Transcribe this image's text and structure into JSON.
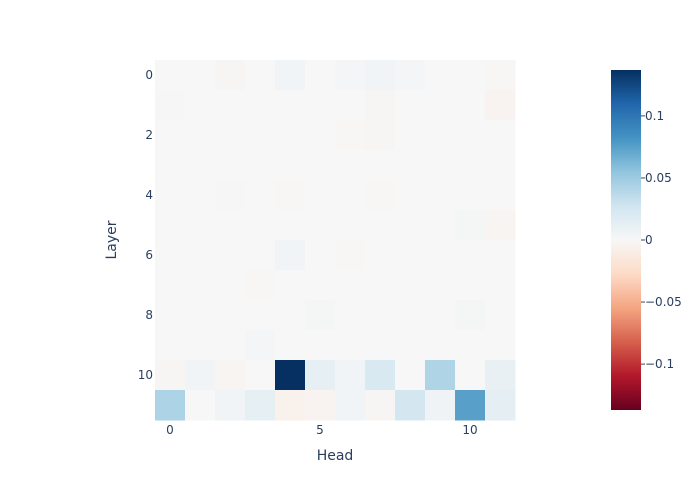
{
  "chart_data": {
    "type": "heatmap",
    "xlabel": "Head",
    "ylabel": "Layer",
    "x": [
      0,
      1,
      2,
      3,
      4,
      5,
      6,
      7,
      8,
      9,
      10,
      11
    ],
    "y": [
      0,
      1,
      2,
      3,
      4,
      5,
      6,
      7,
      8,
      9,
      10,
      11
    ],
    "x_ticks": [
      0,
      5,
      10
    ],
    "y_ticks": [
      0,
      2,
      4,
      6,
      8,
      10
    ],
    "y_reversed": true,
    "colorscale": "RdBu",
    "zlim": [
      -0.137,
      0.137
    ],
    "colorbar_ticks": [
      {
        "value": 0.1,
        "label": "0.1"
      },
      {
        "value": 0.05,
        "label": "0.05"
      },
      {
        "value": 0,
        "label": "0"
      },
      {
        "value": -0.05,
        "label": "−0.05"
      },
      {
        "value": -0.1,
        "label": "−0.1"
      }
    ],
    "z": [
      [
        0.0,
        0.0,
        -0.002,
        0.0,
        0.004,
        0.0,
        0.003,
        0.004,
        0.003,
        0.0,
        0.0,
        -0.001
      ],
      [
        0.001,
        0.0,
        0.0,
        0.0,
        0.0,
        0.0,
        0.0,
        -0.002,
        0.0,
        0.0,
        0.0,
        -0.004
      ],
      [
        0.0,
        0.0,
        0.0,
        0.0,
        0.0,
        0.0,
        -0.001,
        -0.002,
        0.0,
        0.0,
        0.0,
        0.0
      ],
      [
        0.0,
        0.0,
        0.0,
        0.0,
        0.0,
        0.0,
        0.0,
        0.0,
        0.0,
        0.0,
        0.0,
        0.0
      ],
      [
        0.0,
        0.0,
        0.001,
        0.0,
        -0.001,
        0.0,
        0.0,
        -0.001,
        0.0,
        0.0,
        0.0,
        0.0
      ],
      [
        0.0,
        0.0,
        0.0,
        0.0,
        0.0,
        0.0,
        0.0,
        0.0,
        0.0,
        0.0,
        0.002,
        -0.003
      ],
      [
        0.0,
        0.0,
        0.0,
        0.0,
        0.004,
        0.0,
        -0.001,
        0.0,
        0.0,
        0.0,
        0.0,
        0.0
      ],
      [
        0.0,
        0.0,
        0.0,
        -0.001,
        0.0,
        0.0,
        0.0,
        0.0,
        0.0,
        0.0,
        0.0,
        0.0
      ],
      [
        0.0,
        0.0,
        0.0,
        0.0,
        0.0,
        0.002,
        0.0,
        0.0,
        0.0,
        0.0,
        0.002,
        0.0
      ],
      [
        0.0,
        0.0,
        0.0,
        0.003,
        0.0,
        0.0,
        0.0,
        0.0,
        0.0,
        0.0,
        0.0,
        0.0
      ],
      [
        -0.002,
        0.004,
        -0.003,
        0.0,
        0.137,
        0.012,
        0.004,
        0.022,
        0.0,
        0.042,
        0.0,
        0.01
      ],
      [
        0.043,
        0.0,
        0.004,
        0.012,
        -0.006,
        -0.004,
        0.004,
        -0.002,
        0.025,
        0.006,
        0.075,
        0.014
      ]
    ]
  }
}
